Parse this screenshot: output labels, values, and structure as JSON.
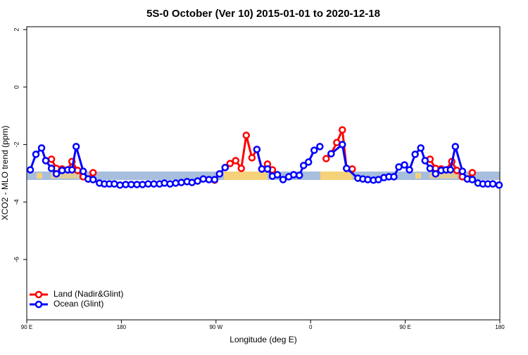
{
  "chart_data": {
    "type": "line",
    "title": "5S-0 October (Ver 10)   2015-01-01 to 2020-12-18",
    "x_label": "Longitude (deg E)",
    "y_label": "XCO2 - MLO trend (ppm)",
    "xlim": [
      90,
      540
    ],
    "ylim": [
      -8.1,
      2.1
    ],
    "xticks": [
      {
        "value": 90,
        "label": "90 E"
      },
      180,
      {
        "value": 270,
        "label": "90 W"
      },
      {
        "value": 360,
        "label": "0"
      },
      {
        "value": 450,
        "label": "90 E"
      },
      {
        "value": 540,
        "label": "180"
      }
    ],
    "yticks": [
      2,
      0,
      -2,
      -4,
      -6
    ],
    "legend": "bottom-left",
    "series": [
      {
        "name": "Land (Nadir&Glint)",
        "color": "#ff0000",
        "x": [
          108.1,
          113.5,
          118.2,
          123.6,
          129,
          133,
          138.4,
          143.7,
          148.4,
          153.1,
          200,
          268.7,
          273.4,
          278.7,
          283.4,
          288.7,
          294.1,
          298.8,
          304.2,
          308.9,
          313.6,
          319,
          323.7,
          345,
          374.8,
          379.5,
          384.9,
          390.2,
          394.2,
          399.6,
          430,
          468.9,
          473.6,
          478.9,
          484.2,
          488.9,
          494.3,
          499.1,
          504.4,
          509.1,
          513.8
        ],
        "values": [
          -2.56,
          -2.51,
          -2.83,
          -2.85,
          -2.88,
          -2.59,
          -2.9,
          -3.12,
          -3.2,
          -2.98,
          null,
          -3.24,
          -3.02,
          -2.8,
          -2.66,
          -2.56,
          -2.83,
          -1.68,
          -2.46,
          -2.17,
          -2.85,
          -2.68,
          -2.88,
          null,
          -2.49,
          -2.32,
          -1.93,
          -1.49,
          -2.83,
          -2.85,
          null,
          -2.56,
          -2.51,
          -2.83,
          -2.85,
          -2.88,
          -2.59,
          -2.9,
          -3.12,
          -3.2,
          -2.98
        ]
      },
      {
        "name": "Ocean (Glint)",
        "color": "#0000ff",
        "x": [
          93.4,
          98.7,
          104.1,
          108.1,
          113.5,
          118.2,
          123.6,
          129,
          133,
          137,
          143.7,
          148.4,
          153.1,
          159.2,
          163.9,
          168.6,
          173.3,
          178.7,
          184.1,
          189.4,
          194.8,
          200.1,
          205.5,
          210.9,
          216.3,
          221,
          226.3,
          231.7,
          237.1,
          242.5,
          247.2,
          252.5,
          257.9,
          263.3,
          268.7,
          273.4,
          278.7,
          296,
          308.9,
          313.6,
          319,
          323.7,
          328.4,
          333.8,
          339.2,
          343.9,
          349.3,
          353.3,
          358,
          363.4,
          368.8,
          374,
          379.5,
          390.2,
          394.2,
          405,
          409.7,
          414.4,
          419.8,
          424.5,
          429.8,
          434.5,
          439.2,
          443.9,
          449.3,
          454,
          459.4,
          464.8,
          468.9,
          473.6,
          478.9,
          484.2,
          488.9,
          493,
          497.7,
          504.4,
          509.1,
          513.8,
          519.2,
          523.9,
          528.6,
          533.3,
          539.3
        ],
        "values": [
          -2.88,
          -2.34,
          -2.12,
          -2.56,
          -2.83,
          -3.02,
          -2.9,
          -2.88,
          -2.88,
          -2.07,
          -2.93,
          -3.2,
          -3.22,
          -3.34,
          -3.37,
          -3.37,
          -3.37,
          -3.41,
          -3.39,
          -3.39,
          -3.39,
          -3.39,
          -3.37,
          -3.37,
          -3.37,
          -3.34,
          -3.37,
          -3.34,
          -3.32,
          -3.29,
          -3.32,
          -3.27,
          -3.2,
          -3.22,
          -3.22,
          -3.02,
          -2.8,
          null,
          -2.17,
          -2.85,
          -2.85,
          -3.1,
          -3.05,
          -3.22,
          -3.12,
          -3.05,
          -3.07,
          -2.73,
          -2.61,
          -2.2,
          -2.07,
          null,
          -2.32,
          -2.0,
          -2.83,
          -3.17,
          -3.2,
          -3.22,
          -3.24,
          -3.22,
          -3.15,
          -3.12,
          -3.12,
          -2.78,
          -2.71,
          -2.88,
          -2.34,
          -2.12,
          -2.56,
          -2.83,
          -3.02,
          -2.9,
          -2.88,
          -2.88,
          -2.07,
          -2.93,
          -3.2,
          -3.22,
          -3.34,
          -3.37,
          -3.37,
          -3.37,
          -3.41
        ]
      }
    ]
  }
}
